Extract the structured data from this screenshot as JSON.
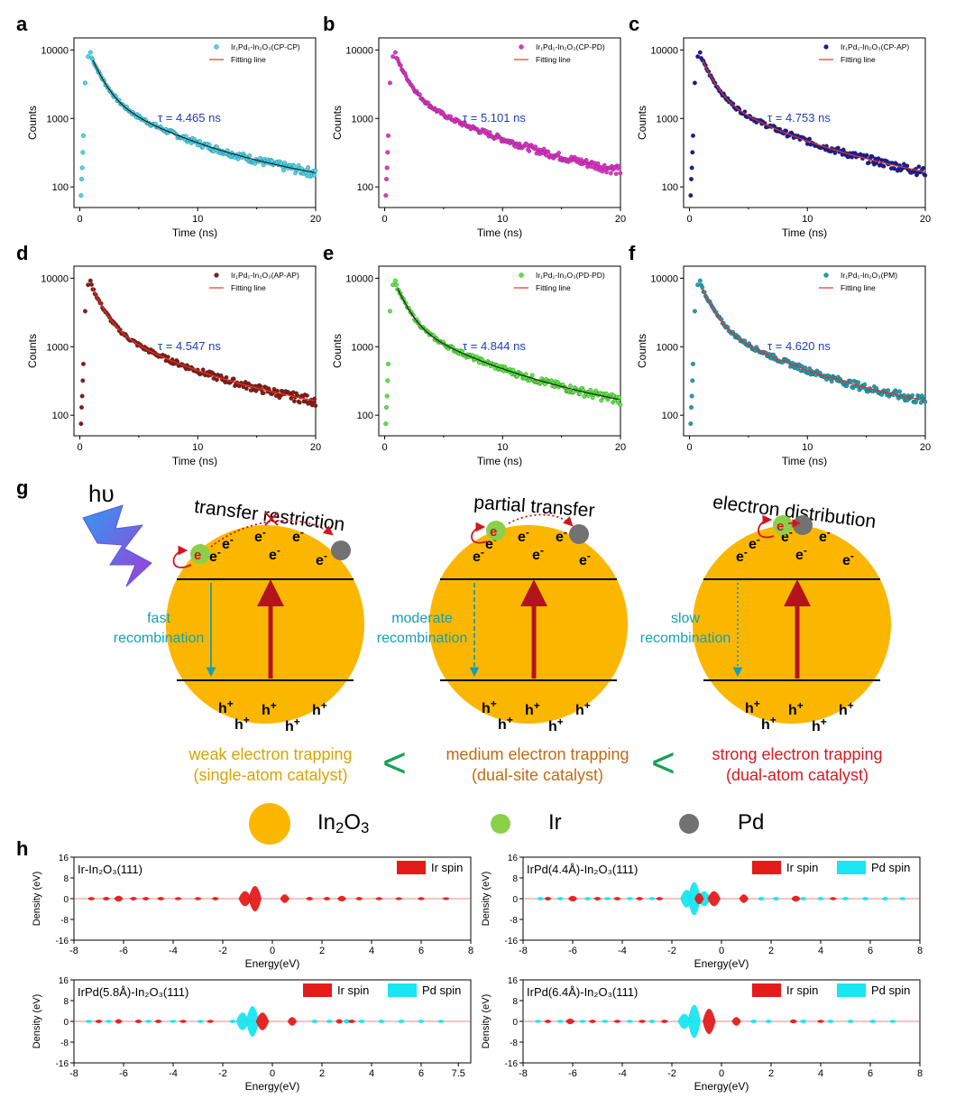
{
  "colors": {
    "in2o3": "#fbb700",
    "ir": "#8cd04a",
    "pd": "#727272",
    "electron_red": "#d3141e",
    "hole_line_blue": "#169fb2",
    "fit_red": "#e8322c",
    "tau_blue": "#1f3eb8",
    "weak": "#d8a400",
    "medium": "#c26a12",
    "strong": "#d61a22",
    "less_than": "#1aa056"
  },
  "panel_letters": [
    "a",
    "b",
    "c",
    "d",
    "e",
    "f",
    "g",
    "h"
  ],
  "chart_data": [
    {
      "type": "scatter",
      "panel": "a",
      "legend": [
        "Ir₁Pd₁-In₂O₃(CP-CP)",
        "Fitting line"
      ],
      "marker_color": "#3fdcf4",
      "fit_color": "#222222",
      "tau_label": "τ = 4.465 ns",
      "tau_ns": 4.465,
      "xlabel": "Time (ns)",
      "ylabel": "Counts",
      "xlim": [
        -0.5,
        20
      ],
      "ylim_log": [
        50,
        15000
      ],
      "x_ticks": [
        0,
        10,
        20
      ],
      "y_ticks": [
        100,
        1000,
        10000
      ]
    },
    {
      "type": "scatter",
      "panel": "b",
      "legend": [
        "Ir₁Pd₁-In₂O₃(CP-PD)",
        "Fitting line"
      ],
      "marker_color": "#e62fd3",
      "fit_color": "#c9289e",
      "tau_label": "τ = 5.101 ns",
      "tau_ns": 5.101,
      "xlabel": "Time (ns)",
      "ylabel": "Counts",
      "xlim": [
        -0.5,
        20
      ],
      "ylim_log": [
        50,
        15000
      ],
      "x_ticks": [
        0,
        10,
        20
      ],
      "y_ticks": [
        100,
        1000,
        10000
      ]
    },
    {
      "type": "scatter",
      "panel": "c",
      "legend": [
        "Ir₁Pd₁-In₂O₃(CP-AP)",
        "Fitting line"
      ],
      "marker_color": "#1a1a9a",
      "fit_color": "#e8322c",
      "tau_label": "τ = 4.753 ns",
      "tau_ns": 4.753,
      "xlabel": "Time (ns)",
      "ylabel": "Counts",
      "xlim": [
        -0.5,
        20
      ],
      "ylim_log": [
        50,
        15000
      ],
      "x_ticks": [
        0,
        10,
        20
      ],
      "y_ticks": [
        100,
        1000,
        10000
      ]
    },
    {
      "type": "scatter",
      "panel": "d",
      "legend": [
        "Ir₁Pd₁-In₂O₃(AP-AP)",
        "Fitting line"
      ],
      "marker_color": "#8a1a12",
      "fit_color": "#e8322c",
      "tau_label": "τ = 4.547 ns",
      "tau_ns": 4.547,
      "xlabel": "Time (ns)",
      "ylabel": "Counts",
      "xlim": [
        -0.5,
        20
      ],
      "ylim_log": [
        50,
        15000
      ],
      "x_ticks": [
        0,
        10,
        20
      ],
      "y_ticks": [
        100,
        1000,
        10000
      ]
    },
    {
      "type": "scatter",
      "panel": "e",
      "legend": [
        "Ir₁Pd₁-In₂O₃(PD-PD)",
        "Fitting line"
      ],
      "marker_color": "#54ee3a",
      "fit_color": "#222222",
      "tau_label": "τ = 4.844 ns",
      "tau_ns": 4.844,
      "xlabel": "Time (ns)",
      "ylabel": "Counts",
      "xlim": [
        -0.5,
        20
      ],
      "ylim_log": [
        50,
        15000
      ],
      "x_ticks": [
        0,
        10,
        20
      ],
      "y_ticks": [
        100,
        1000,
        10000
      ]
    },
    {
      "type": "scatter",
      "panel": "f",
      "legend": [
        "Ir₁Pd₁-In₂O₃(PM)",
        "Fitting line"
      ],
      "marker_color": "#1ca0b4",
      "fit_color": "#e8322c",
      "tau_label": "τ = 4.620 ns",
      "tau_ns": 4.62,
      "xlabel": "Time (ns)",
      "ylabel": "Counts",
      "xlim": [
        -0.5,
        20
      ],
      "ylim_log": [
        50,
        15000
      ],
      "x_ticks": [
        0,
        10,
        20
      ],
      "y_ticks": [
        100,
        1000,
        10000
      ]
    },
    {
      "type": "area",
      "panel": "h",
      "title": "Ir-In₂O₃(111)",
      "legend": [
        "Ir spin"
      ],
      "xlabel": "Energy(eV)",
      "ylabel": "Density (eV)",
      "xlim": [
        -8,
        8
      ],
      "ylim": [
        -16,
        16
      ],
      "x_ticks": [
        -8,
        -6,
        -4,
        -2,
        0,
        2,
        4,
        6,
        8
      ],
      "y_ticks": [
        16,
        8,
        0,
        -8,
        -16
      ],
      "peaks": {
        "ir": [
          [
            -7.3,
            0.5
          ],
          [
            -6.7,
            0.6
          ],
          [
            -6.2,
            1.5
          ],
          [
            -5.6,
            0.6
          ],
          [
            -5.1,
            0.5
          ],
          [
            -4.5,
            0.5
          ],
          [
            -3.8,
            0.4
          ],
          [
            -3.0,
            0.4
          ],
          [
            -2.3,
            0.5
          ],
          [
            -1.1,
            5
          ],
          [
            -0.7,
            9
          ],
          [
            0.5,
            2.5
          ],
          [
            1.5,
            0.6
          ],
          [
            2.2,
            0.5
          ],
          [
            2.8,
            1.4
          ],
          [
            3.5,
            0.5
          ],
          [
            4.3,
            0.4
          ],
          [
            5.1,
            0.3
          ],
          [
            6.0,
            0.4
          ],
          [
            7.0,
            0.3
          ]
        ],
        "pd": []
      }
    },
    {
      "type": "area",
      "panel": "h",
      "title": "IrPd(4.4Å)-In₂O₃(111)",
      "legend": [
        "Ir spin",
        "Pd spin"
      ],
      "xlabel": "Energy(eV)",
      "ylabel": "Density (eV)",
      "xlim": [
        -8,
        8
      ],
      "ylim": [
        -16,
        16
      ],
      "x_ticks": [
        -8,
        -6,
        -4,
        -2,
        0,
        2,
        4,
        6,
        8
      ],
      "y_ticks": [
        16,
        8,
        0,
        -8,
        -16
      ],
      "peaks": {
        "ir": [
          [
            -7.0,
            0.6
          ],
          [
            -6.0,
            1.4
          ],
          [
            -5.0,
            0.6
          ],
          [
            -4.2,
            0.5
          ],
          [
            -3.3,
            0.5
          ],
          [
            -2.5,
            0.5
          ],
          [
            -0.9,
            3.5
          ],
          [
            -0.3,
            5
          ],
          [
            0.9,
            2.5
          ],
          [
            3.0,
            1.5
          ],
          [
            4.5,
            0.4
          ]
        ],
        "pd": [
          [
            -7.3,
            0.5
          ],
          [
            -6.5,
            0.5
          ],
          [
            -5.4,
            0.5
          ],
          [
            -4.6,
            0.4
          ],
          [
            -3.7,
            0.4
          ],
          [
            -2.8,
            0.4
          ],
          [
            -1.4,
            6
          ],
          [
            -1.1,
            12
          ],
          [
            -0.7,
            5
          ],
          [
            1.6,
            0.6
          ],
          [
            2.2,
            0.6
          ],
          [
            3.3,
            0.5
          ],
          [
            4.0,
            0.5
          ],
          [
            5.0,
            0.5
          ],
          [
            5.8,
            0.5
          ],
          [
            6.6,
            0.5
          ],
          [
            7.3,
            0.4
          ]
        ]
      }
    },
    {
      "type": "area",
      "panel": "h",
      "title": "IrPd(5.8Å)-In₂O₃(111)",
      "legend": [
        "Ir spin",
        "Pd spin"
      ],
      "xlabel": "Energy(eV)",
      "ylabel": "Density (eV)",
      "xlim": [
        -8,
        8
      ],
      "ylim": [
        -16,
        16
      ],
      "x_ticks": [
        -8,
        -6,
        -4,
        -2,
        0,
        2,
        4,
        6,
        7.5
      ],
      "y_ticks": [
        16,
        8,
        0,
        -8,
        -16
      ],
      "peaks": {
        "ir": [
          [
            -7.0,
            0.5
          ],
          [
            -6.2,
            1.0
          ],
          [
            -5.4,
            0.6
          ],
          [
            -4.6,
            0.5
          ],
          [
            -3.6,
            0.4
          ],
          [
            -2.5,
            0.4
          ],
          [
            -0.4,
            6
          ],
          [
            0.8,
            2.5
          ],
          [
            2.7,
            1.0
          ],
          [
            3.2,
            0.6
          ]
        ],
        "pd": [
          [
            -7.4,
            0.4
          ],
          [
            -6.6,
            0.4
          ],
          [
            -5.0,
            0.4
          ],
          [
            -4.0,
            0.4
          ],
          [
            -2.9,
            0.4
          ],
          [
            -1.6,
            0.5
          ],
          [
            -1.2,
            6
          ],
          [
            -0.8,
            11
          ],
          [
            1.7,
            0.5
          ],
          [
            2.3,
            0.5
          ],
          [
            3.0,
            1.0
          ],
          [
            3.6,
            0.5
          ],
          [
            4.4,
            0.5
          ],
          [
            5.2,
            0.5
          ],
          [
            6.0,
            0.5
          ],
          [
            6.8,
            0.4
          ]
        ]
      }
    },
    {
      "type": "area",
      "panel": "h",
      "title": "IrPd(6.4Å)-In₂O₃(111)",
      "legend": [
        "Ir spin",
        "Pd spin"
      ],
      "xlabel": "Energy(eV)",
      "ylabel": "Density (eV)",
      "xlim": [
        -8,
        8
      ],
      "ylim": [
        -16,
        16
      ],
      "x_ticks": [
        -8,
        -6,
        -4,
        -2,
        0,
        2,
        4,
        6,
        8
      ],
      "y_ticks": [
        16,
        8,
        0,
        -8,
        -16
      ],
      "peaks": {
        "ir": [
          [
            -7.0,
            0.5
          ],
          [
            -6.1,
            1.4
          ],
          [
            -5.2,
            0.5
          ],
          [
            -4.2,
            0.4
          ],
          [
            -3.2,
            0.4
          ],
          [
            -2.3,
            0.5
          ],
          [
            -0.5,
            9
          ],
          [
            0.6,
            2.5
          ],
          [
            2.9,
            0.8
          ],
          [
            4.0,
            0.4
          ]
        ],
        "pd": [
          [
            -7.4,
            0.4
          ],
          [
            -6.5,
            0.4
          ],
          [
            -5.6,
            0.4
          ],
          [
            -4.7,
            0.4
          ],
          [
            -3.7,
            0.4
          ],
          [
            -2.8,
            0.5
          ],
          [
            -1.5,
            5
          ],
          [
            -1.1,
            12
          ],
          [
            1.3,
            0.6
          ],
          [
            1.9,
            0.5
          ],
          [
            3.3,
            0.6
          ],
          [
            4.4,
            0.5
          ],
          [
            5.2,
            0.5
          ],
          [
            6.1,
            0.5
          ],
          [
            6.9,
            0.4
          ]
        ]
      }
    }
  ],
  "scheme": {
    "photon_label": "hυ",
    "electron": "e",
    "electron_sup": "-",
    "hole": "h",
    "hole_sup": "+",
    "spheres": [
      {
        "title": "transfer restriction",
        "recombination": [
          "fast",
          "recombination"
        ],
        "mode": "restricted"
      },
      {
        "title": "partial transfer",
        "recombination": [
          "moderate",
          "recombination"
        ],
        "mode": "partial"
      },
      {
        "title": "electron distribution",
        "recombination": [
          "slow",
          "recombination"
        ],
        "mode": "distributed"
      }
    ],
    "trapping": [
      {
        "line1": "weak electron trapping",
        "line2": "(single-atom catalyst)"
      },
      {
        "line1": "medium electron trapping",
        "line2": "(dual-site catalyst)"
      },
      {
        "line1": "strong electron trapping",
        "line2": "(dual-atom catalyst)"
      }
    ],
    "less_than": "<",
    "legend": [
      {
        "label": "In",
        "sub1": "2",
        "mid": "O",
        "sub2": "3"
      },
      {
        "label": "Ir"
      },
      {
        "label": "Pd"
      }
    ]
  }
}
